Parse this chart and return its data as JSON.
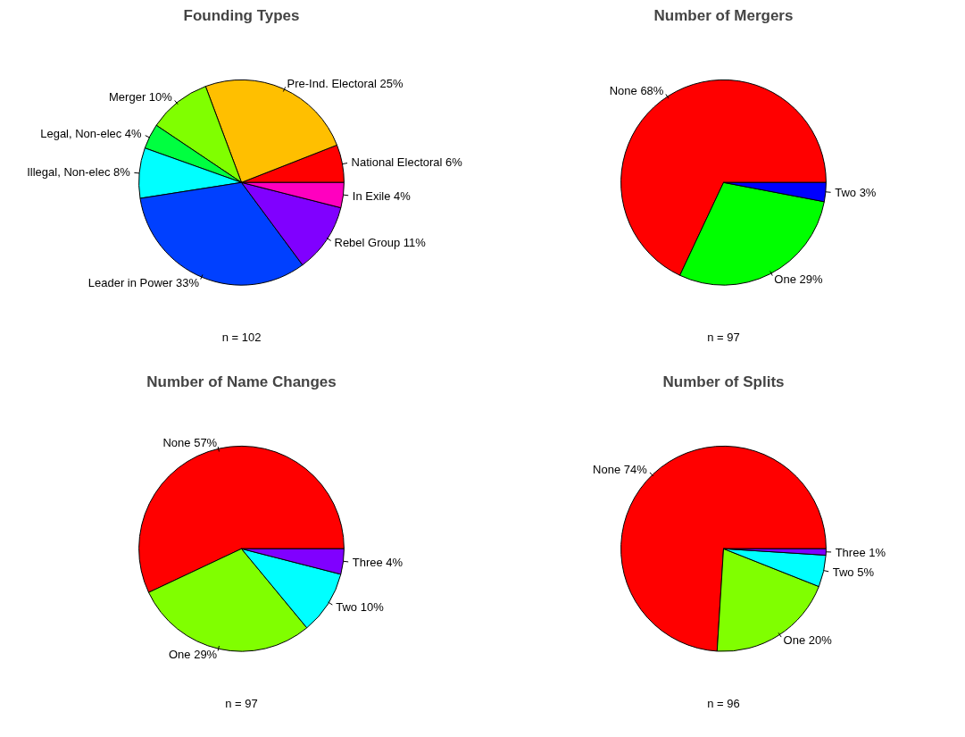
{
  "chart_data": [
    {
      "type": "pie",
      "title": "Founding Types",
      "categories": [
        "National Electoral 6%",
        "Pre-Ind. Electoral 25%",
        "Merger 10%",
        "Legal, Non-elec 4%",
        "Illegal, Non-elec 8%",
        "Leader in Power 33%",
        "Rebel Group 11%",
        "In Exile 4%"
      ],
      "values": [
        6,
        25,
        10,
        4,
        8,
        33,
        11,
        4
      ],
      "colors": [
        "#ff0000",
        "#ffbf00",
        "#80ff00",
        "#00ff40",
        "#00ffff",
        "#0040ff",
        "#8000ff",
        "#ff00bf"
      ],
      "annotations": [
        "n = 102"
      ],
      "legend": false
    },
    {
      "type": "pie",
      "title": "Number of Mergers",
      "categories": [
        "None 68%",
        "One 29%",
        "Two 3%"
      ],
      "values": [
        68,
        29,
        3
      ],
      "colors": [
        "#ff0000",
        "#00ff00",
        "#0000ff"
      ],
      "annotations": [
        "n = 97"
      ],
      "legend": false
    },
    {
      "type": "pie",
      "title": "Number of Name Changes",
      "categories": [
        "None 57%",
        "One 29%",
        "Two 10%",
        "Three 4%"
      ],
      "values": [
        57,
        29,
        10,
        4
      ],
      "colors": [
        "#ff0000",
        "#80ff00",
        "#00ffff",
        "#8000ff"
      ],
      "annotations": [
        "n = 97"
      ],
      "legend": false
    },
    {
      "type": "pie",
      "title": "Number of Splits",
      "categories": [
        "None 74%",
        "One 20%",
        "Two 5%",
        "Three 1%"
      ],
      "values": [
        74,
        20,
        5,
        1
      ],
      "colors": [
        "#ff0000",
        "#80ff00",
        "#00ffff",
        "#8000ff"
      ],
      "annotations": [
        "n = 96"
      ],
      "legend": false
    }
  ]
}
